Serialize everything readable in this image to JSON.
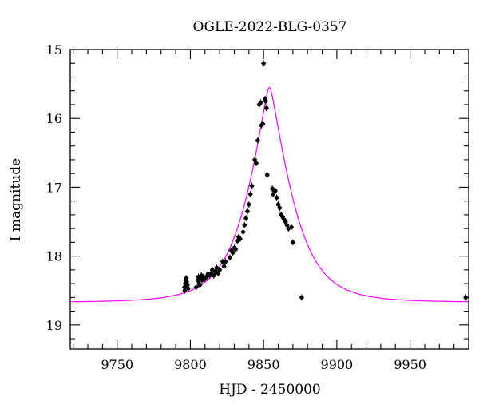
{
  "chart_data": {
    "type": "scatter",
    "title": "OGLE-2022-BLG-0357",
    "xlabel": "HJD - 2450000",
    "ylabel": "I magnitude",
    "xlim": [
      9718,
      9990
    ],
    "ylim": [
      15,
      19.35
    ],
    "y_inverted": true,
    "x_ticks": [
      9750,
      9800,
      9850,
      9900,
      9950
    ],
    "y_ticks": [
      15,
      16,
      17,
      18,
      19
    ],
    "x_tick_labels": [
      "9750",
      "9800",
      "9850",
      "9900",
      "9950"
    ],
    "y_tick_labels": [
      "15",
      "16",
      "17",
      "18",
      "19"
    ],
    "grid": false,
    "colors": {
      "points": "#000000",
      "model": "#ff00ff"
    },
    "series": [
      {
        "kind": "points",
        "x": [
          9796,
          9796.5,
          9797,
          9797.5,
          9798,
          9798.5,
          9796.2,
          9797.2,
          9804,
          9805,
          9805.5,
          9806,
          9806.5,
          9807,
          9807.5,
          9808,
          9809,
          9810,
          9811,
          9812,
          9813,
          9814,
          9815,
          9816,
          9817,
          9818,
          9819,
          9820,
          9822,
          9823,
          9824,
          9827,
          9828,
          9829,
          9830,
          9831,
          9832,
          9833,
          9834,
          9836,
          9837,
          9838,
          9839,
          9840,
          9841,
          9842,
          9844,
          9845,
          9846,
          9847,
          9848,
          9848.5,
          9849.5,
          9850,
          9851,
          9851.5,
          9852,
          9852.5,
          9856,
          9856.5,
          9858,
          9859,
          9860,
          9861,
          9862,
          9863,
          9864,
          9865,
          9866,
          9867,
          9869,
          9870,
          9876,
          9988
        ],
        "y": [
          18.45,
          18.4,
          18.35,
          18.38,
          18.42,
          18.47,
          18.5,
          18.32,
          18.45,
          18.35,
          18.3,
          18.4,
          18.42,
          18.32,
          18.28,
          18.35,
          18.3,
          18.33,
          18.3,
          18.26,
          18.28,
          18.25,
          18.2,
          18.28,
          18.22,
          18.17,
          18.25,
          18.2,
          18.08,
          18.15,
          18.08,
          18.02,
          17.92,
          17.95,
          17.88,
          17.9,
          17.78,
          17.72,
          17.75,
          17.65,
          17.55,
          17.45,
          17.35,
          17.25,
          17.1,
          16.98,
          16.6,
          16.65,
          16.32,
          15.8,
          15.77,
          16.1,
          16.08,
          15.2,
          15.72,
          15.75,
          15.85,
          16.82,
          17.02,
          17.1,
          17.05,
          17.15,
          17.25,
          17.3,
          17.4,
          17.43,
          17.47,
          17.5,
          17.55,
          17.6,
          17.58,
          17.8,
          18.6,
          18.6
        ]
      },
      {
        "kind": "model_curve",
        "baseline_mag": 18.67,
        "peak_mag": 15.55,
        "peak_x": 9854
      }
    ]
  }
}
